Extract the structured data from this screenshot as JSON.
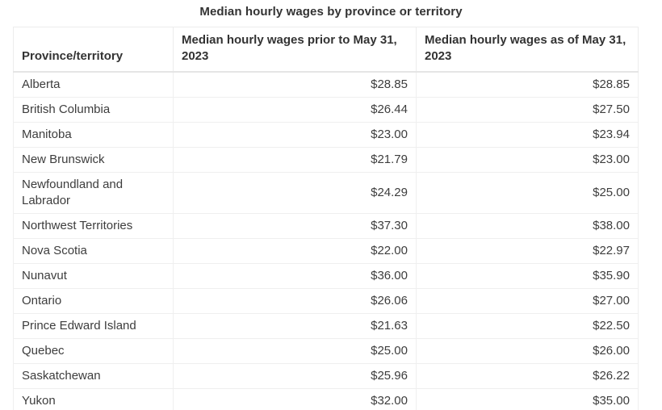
{
  "title": "Median hourly wages by province or territory",
  "table": {
    "columns": [
      "Province/territory",
      "Median hourly wages prior to May 31, 2023",
      "Median hourly wages as of May 31, 2023"
    ],
    "rows": [
      [
        "Alberta",
        "$28.85",
        "$28.85"
      ],
      [
        "British Columbia",
        "$26.44",
        "$27.50"
      ],
      [
        "Manitoba",
        "$23.00",
        "$23.94"
      ],
      [
        "New Brunswick",
        "$21.79",
        "$23.00"
      ],
      [
        "Newfoundland and Labrador",
        "$24.29",
        "$25.00"
      ],
      [
        "Northwest Territories",
        "$37.30",
        "$38.00"
      ],
      [
        "Nova Scotia",
        "$22.00",
        "$22.97"
      ],
      [
        "Nunavut",
        "$36.00",
        "$35.90"
      ],
      [
        "Ontario",
        "$26.06",
        "$27.00"
      ],
      [
        "Prince Edward Island",
        "$21.63",
        "$22.50"
      ],
      [
        "Quebec",
        "$25.00",
        "$26.00"
      ],
      [
        "Saskatchewan",
        "$25.96",
        "$26.22"
      ],
      [
        "Yukon",
        "$32.00",
        "$35.00"
      ]
    ]
  },
  "chart_data": {
    "type": "table",
    "title": "Median hourly wages by province or territory",
    "columns": [
      "Province/territory",
      "Median hourly wages prior to May 31, 2023",
      "Median hourly wages as of May 31, 2023"
    ],
    "categories": [
      "Alberta",
      "British Columbia",
      "Manitoba",
      "New Brunswick",
      "Newfoundland and Labrador",
      "Northwest Territories",
      "Nova Scotia",
      "Nunavut",
      "Ontario",
      "Prince Edward Island",
      "Quebec",
      "Saskatchewan",
      "Yukon"
    ],
    "series": [
      {
        "name": "Median hourly wages prior to May 31, 2023",
        "values": [
          28.85,
          26.44,
          23.0,
          21.79,
          24.29,
          37.3,
          22.0,
          36.0,
          26.06,
          21.63,
          25.0,
          25.96,
          32.0
        ]
      },
      {
        "name": "Median hourly wages as of May 31, 2023",
        "values": [
          28.85,
          27.5,
          23.94,
          23.0,
          25.0,
          38.0,
          22.97,
          35.9,
          27.0,
          22.5,
          26.0,
          26.22,
          35.0
        ]
      }
    ],
    "value_format": "currency-CAD",
    "grid": true,
    "legend_position": "none"
  },
  "colors": {
    "text": "#333333",
    "body_text": "#3d3d3d",
    "border": "#ececec",
    "header_border_bottom": "#e5e5e5",
    "background": "#ffffff"
  }
}
